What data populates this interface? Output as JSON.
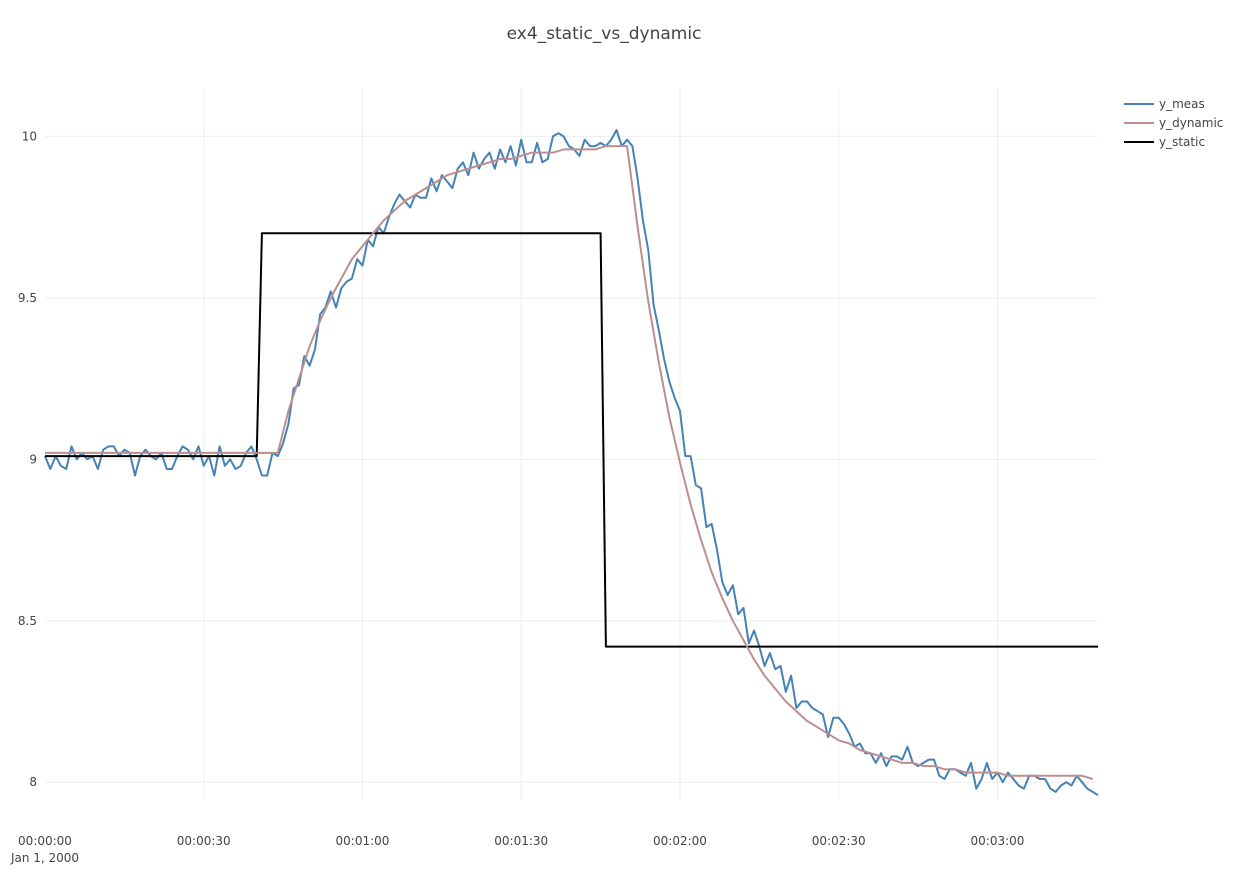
{
  "chart_data": {
    "type": "line",
    "title": "ex4_static_vs_dynamic",
    "xlabel": "",
    "ylabel": "",
    "x_date": "Jan 1, 2000",
    "xlim": [
      "00:00:00",
      "00:03:19"
    ],
    "ylim": [
      7.945,
      10.15
    ],
    "grid": true,
    "legend_position": "top-right",
    "x_ticks": [
      "00:00:00",
      "00:00:30",
      "00:01:00",
      "00:01:30",
      "00:02:00",
      "00:02:30",
      "00:03:00"
    ],
    "y_ticks": [
      8,
      8.5,
      9,
      9.5,
      10
    ],
    "y_tick_labels": [
      "8",
      "8.5",
      "9",
      "9.5",
      "10"
    ],
    "series": [
      {
        "name": "y_meas",
        "color": "#4682b4",
        "x_start": "00:00:00",
        "x_step_seconds": 1,
        "values": [
          9.01,
          8.97,
          9.01,
          8.98,
          8.97,
          9.04,
          9.0,
          9.02,
          9.0,
          9.01,
          8.97,
          9.03,
          9.04,
          9.04,
          9.01,
          9.03,
          9.02,
          8.95,
          9.01,
          9.03,
          9.01,
          9.0,
          9.02,
          8.97,
          8.97,
          9.01,
          9.04,
          9.03,
          9.0,
          9.04,
          8.98,
          9.01,
          8.95,
          9.04,
          8.98,
          9.0,
          8.97,
          8.98,
          9.02,
          9.04,
          9.0,
          8.95,
          8.95,
          9.02,
          9.01,
          9.05,
          9.11,
          9.22,
          9.23,
          9.32,
          9.29,
          9.34,
          9.45,
          9.47,
          9.52,
          9.47,
          9.53,
          9.55,
          9.56,
          9.62,
          9.6,
          9.68,
          9.66,
          9.72,
          9.7,
          9.75,
          9.79,
          9.82,
          9.8,
          9.78,
          9.82,
          9.81,
          9.81,
          9.87,
          9.83,
          9.88,
          9.86,
          9.84,
          9.9,
          9.92,
          9.88,
          9.95,
          9.9,
          9.93,
          9.95,
          9.9,
          9.96,
          9.92,
          9.97,
          9.91,
          9.99,
          9.92,
          9.92,
          9.98,
          9.92,
          9.93,
          10.0,
          10.01,
          10.0,
          9.97,
          9.96,
          9.94,
          9.99,
          9.97,
          9.97,
          9.98,
          9.97,
          9.99,
          10.02,
          9.97,
          9.99,
          9.97,
          9.87,
          9.74,
          9.65,
          9.48,
          9.4,
          9.31,
          9.24,
          9.19,
          9.15,
          9.01,
          9.01,
          8.92,
          8.91,
          8.79,
          8.8,
          8.72,
          8.62,
          8.58,
          8.61,
          8.52,
          8.54,
          8.43,
          8.47,
          8.42,
          8.36,
          8.4,
          8.35,
          8.36,
          8.28,
          8.33,
          8.23,
          8.25,
          8.25,
          8.23,
          8.22,
          8.21,
          8.14,
          8.2,
          8.2,
          8.18,
          8.15,
          8.11,
          8.12,
          8.09,
          8.09,
          8.06,
          8.09,
          8.05,
          8.08,
          8.08,
          8.07,
          8.11,
          8.06,
          8.05,
          8.06,
          8.07,
          8.07,
          8.02,
          8.01,
          8.04,
          8.04,
          8.03,
          8.02,
          8.06,
          7.98,
          8.01,
          8.06,
          8.01,
          8.03,
          8.0,
          8.03,
          8.01,
          7.99,
          7.98,
          8.02,
          8.02,
          8.01,
          8.01,
          7.98,
          7.97,
          7.99,
          8.0,
          7.99,
          8.02,
          8.0,
          7.98,
          7.97,
          7.96
        ]
      },
      {
        "name": "y_dynamic",
        "color": "#bc8f8f",
        "x_start": "00:00:00",
        "x_step_seconds": 2,
        "values": [
          9.02,
          9.02,
          9.02,
          9.02,
          9.02,
          9.02,
          9.02,
          9.02,
          9.02,
          9.02,
          9.02,
          9.02,
          9.02,
          9.02,
          9.02,
          9.02,
          9.02,
          9.02,
          9.02,
          9.02,
          9.02,
          9.02,
          9.02,
          9.15,
          9.25,
          9.35,
          9.43,
          9.5,
          9.56,
          9.62,
          9.66,
          9.7,
          9.74,
          9.77,
          9.8,
          9.82,
          9.84,
          9.86,
          9.88,
          9.89,
          9.9,
          9.91,
          9.92,
          9.93,
          9.93,
          9.94,
          9.95,
          9.95,
          9.95,
          9.96,
          9.96,
          9.96,
          9.96,
          9.97,
          9.97,
          9.97,
          9.72,
          9.49,
          9.3,
          9.13,
          8.99,
          8.86,
          8.75,
          8.65,
          8.57,
          8.5,
          8.44,
          8.38,
          8.33,
          8.29,
          8.25,
          8.22,
          8.19,
          8.17,
          8.15,
          8.13,
          8.12,
          8.1,
          8.09,
          8.08,
          8.07,
          8.06,
          8.06,
          8.05,
          8.05,
          8.04,
          8.04,
          8.03,
          8.03,
          8.03,
          8.03,
          8.02,
          8.02,
          8.02,
          8.02,
          8.02,
          8.02,
          8.02,
          8.02,
          8.01
        ]
      },
      {
        "name": "y_static",
        "color": "#000000",
        "points": [
          [
            "00:00:00",
            9.01
          ],
          [
            "00:00:40",
            9.01
          ],
          [
            "00:00:41",
            9.7
          ],
          [
            "00:01:45",
            9.7
          ],
          [
            "00:01:46",
            8.42
          ],
          [
            "00:03:19",
            8.42
          ]
        ]
      }
    ]
  }
}
